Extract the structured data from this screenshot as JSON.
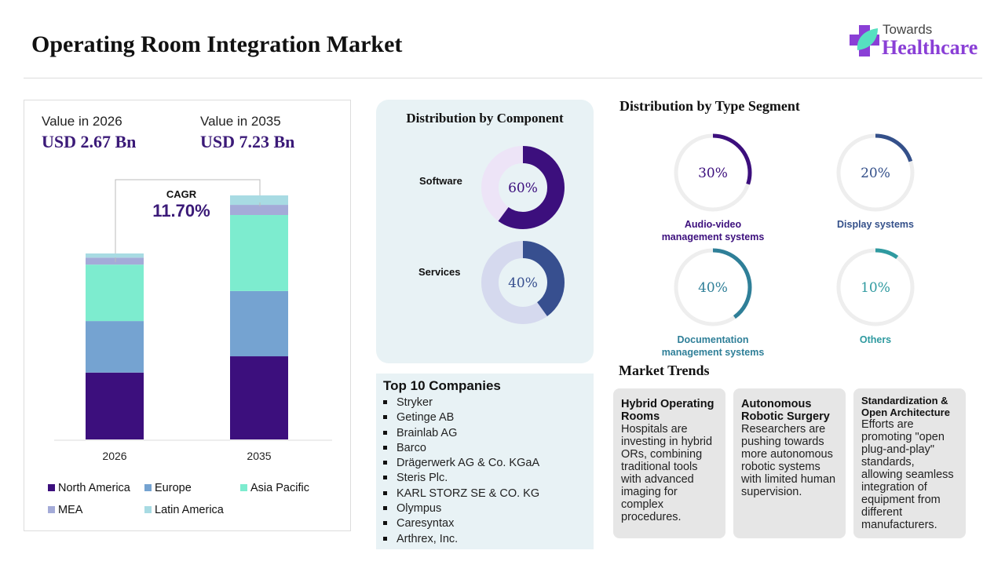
{
  "title": "Operating Room Integration Market",
  "logo": {
    "line1": "Towards",
    "line2": "Healthcare"
  },
  "market": {
    "label_2026": "Value in 2026",
    "value_2026": "USD 2.67 Bn",
    "label_2035": "Value in 2035",
    "value_2035": "USD 7.23 Bn",
    "cagr_label": "CAGR",
    "cagr_value": "11.70%"
  },
  "chart_data": [
    {
      "type": "bar",
      "stacked": true,
      "categories": [
        "2026",
        "2035"
      ],
      "unit": "USD Bn",
      "series": [
        {
          "name": "North America",
          "color": "#3c0f7d",
          "values": [
            0.96,
            2.46
          ]
        },
        {
          "name": "Europe",
          "color": "#75a3d1",
          "values": [
            0.74,
            1.93
          ]
        },
        {
          "name": "Asia Pacific",
          "color": "#7deccf",
          "values": [
            0.81,
            2.25
          ]
        },
        {
          "name": "MEA",
          "color": "#a4abd8",
          "values": [
            0.1,
            0.3
          ]
        },
        {
          "name": "Latin America",
          "color": "#a8dbe3",
          "values": [
            0.06,
            0.28
          ]
        }
      ],
      "legend": "bottom",
      "grid": false
    },
    {
      "type": "pie",
      "title": "Distribution by Component",
      "donut": true,
      "slices": [
        {
          "name": "Software",
          "value": 60,
          "label": "60%",
          "color": "#3c0f7d",
          "track": "#ede4f7"
        },
        {
          "name": "Services",
          "value": 40,
          "label": "40%",
          "color": "#374f8f",
          "track": "#d5d9ee"
        }
      ]
    },
    {
      "type": "pie",
      "title": "Distribution by Type Segment",
      "donut": true,
      "slices": [
        {
          "name": "Audio-video management systems",
          "value": 30,
          "label": "30%",
          "color": "#3c0f7d"
        },
        {
          "name": "Display systems",
          "value": 20,
          "label": "20%",
          "color": "#34508a"
        },
        {
          "name": "Documentation management systems",
          "value": 40,
          "label": "40%",
          "color": "#2f7f98"
        },
        {
          "name": "Others",
          "value": 10,
          "label": "10%",
          "color": "#2f9aa0"
        }
      ]
    }
  ],
  "companies": {
    "title": "Top 10 Companies",
    "items": [
      "Stryker",
      "Getinge AB",
      "Brainlab AG",
      "Barco",
      "Drägerwerk AG & Co. KGaA",
      "Steris Plc.",
      "KARL STORZ SE & CO. KG",
      "Olympus",
      "Caresyntax",
      "Arthrex, Inc."
    ]
  },
  "trends": {
    "title": "Market Trends",
    "items": [
      {
        "heading": "Hybrid Operating Rooms",
        "body": "Hospitals are investing in hybrid ORs, combining traditional tools with advanced imaging for complex procedures."
      },
      {
        "heading": "Autonomous Robotic Surgery",
        "body": " Researchers are pushing towards more autonomous robotic systems with limited human supervision."
      },
      {
        "heading": "Standardization & Open Architecture",
        "body": "Efforts are promoting \"open plug-and-play\" standards, allowing seamless integration of equipment from different manufacturers."
      }
    ]
  }
}
